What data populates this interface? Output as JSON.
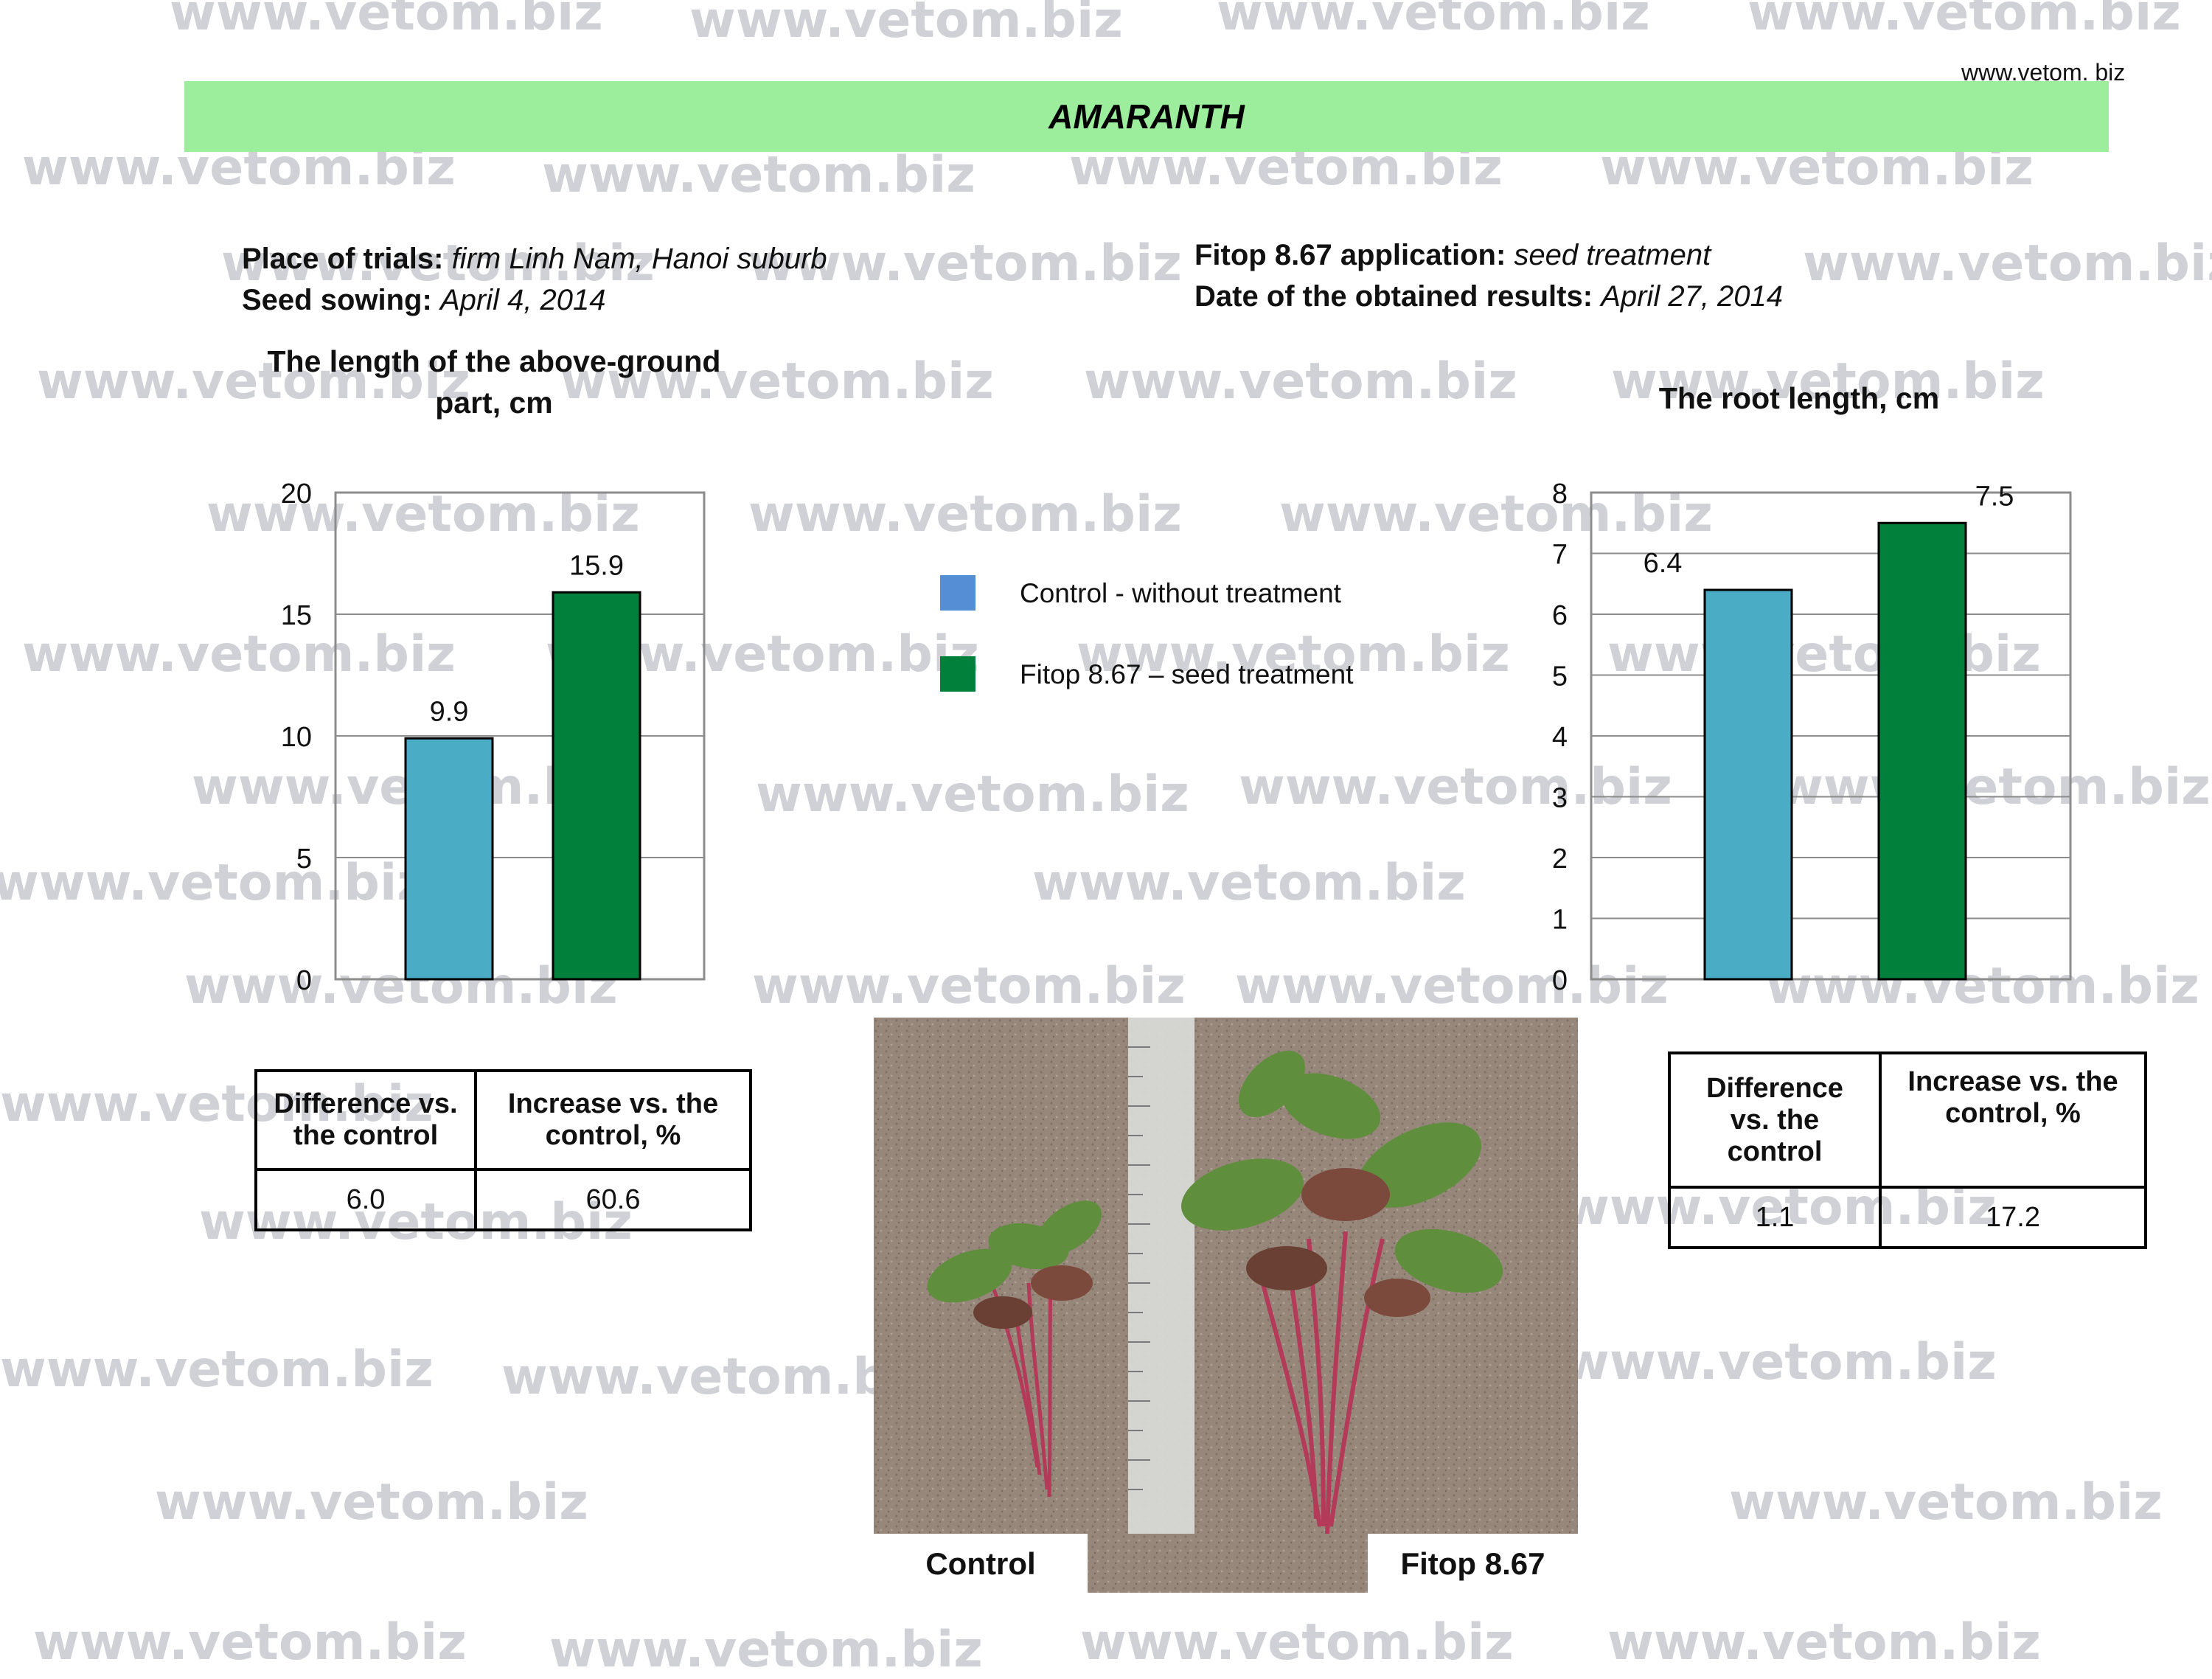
{
  "watermark": "www.vetom.biz",
  "site_label": "www.vetom. biz",
  "title": "AMARANTH",
  "info": {
    "place_label": "Place of trials:",
    "place_value": "firm Linh Nam, Hanoi suburb",
    "sowing_label": "Seed sowing:",
    "sowing_value": "April  4, 2014",
    "application_label": "Fitop 8.67 application:",
    "application_value": "seed treatment",
    "results_label": "Date of  the obtained results:",
    "results_value": "April 27, 2014"
  },
  "colors": {
    "control": "#4bacc6",
    "treated": "#00803a",
    "legend_control": "#558ed5",
    "banner": "#9cee9c"
  },
  "legend": [
    {
      "label": "Control - without treatment",
      "color": "#558ed5"
    },
    {
      "label": "Fitop 8.67 – seed treatment",
      "color": "#00803a"
    }
  ],
  "chart_data": [
    {
      "type": "bar",
      "title_line1": "The length of the above-ground",
      "title_line2": "part, cm",
      "categories": [
        "Control - without treatment",
        "Fitop 8.67 – seed treatment"
      ],
      "values": [
        9.9,
        15.9
      ],
      "labels": [
        "9.9",
        "15.9"
      ],
      "ylim": [
        0,
        20
      ],
      "yticks": [
        "0",
        "5",
        "10",
        "15",
        "20"
      ],
      "grid": true,
      "legend": "center"
    },
    {
      "type": "bar",
      "title": "The root length, cm",
      "categories": [
        "Control - without treatment",
        "Fitop 8.67 – seed treatment"
      ],
      "values": [
        6.4,
        7.5
      ],
      "labels": [
        "6.4",
        "7.5"
      ],
      "ylim": [
        0,
        8
      ],
      "yticks": [
        "0",
        "1",
        "2",
        "3",
        "4",
        "5",
        "6",
        "7",
        "8"
      ],
      "grid": true,
      "legend": "center"
    }
  ],
  "table_left": {
    "header_diff_line1": "Difference vs.",
    "header_diff_line2": "the control",
    "header_inc_line1": "Increase vs. the",
    "header_inc_line2": "control, %",
    "diff": "6.0",
    "increase": "60.6"
  },
  "table_right": {
    "header_diff_line1": "Difference",
    "header_diff_line2": "vs. the",
    "header_diff_line3": "control",
    "header_inc_line1": "Increase vs. the",
    "header_inc_line2": "control, %",
    "diff": "1.1",
    "increase": "17.2"
  },
  "photo": {
    "caption_control": "Control",
    "caption_treated": "Fitop 8.67"
  }
}
